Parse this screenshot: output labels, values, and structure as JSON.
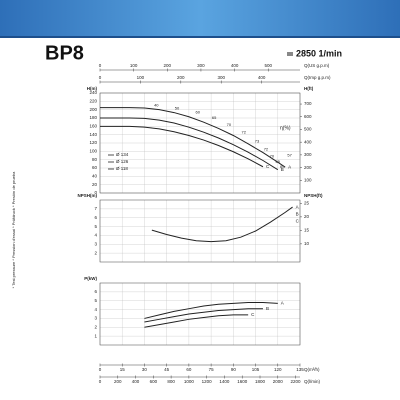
{
  "header": {
    "model": "BP8",
    "speed": "2850 1/min"
  },
  "side_note": "* Test pressure * Pression d'essai * Prüfdruck * Presión de prueba",
  "flow_axes": [
    {
      "label": "Q(US g.p.m)",
      "position": "top",
      "lim": [
        0,
        594.4
      ],
      "ticks": [
        0,
        100,
        200,
        300,
        400,
        500
      ]
    },
    {
      "label": "Q(Imp g.p.m)",
      "position": "top",
      "lim": [
        0,
        495
      ],
      "ticks": [
        0,
        100,
        200,
        300,
        400
      ]
    },
    {
      "label": "Q(m³/h)",
      "position": "bottom",
      "lim": [
        0,
        135
      ],
      "ticks": [
        0,
        15,
        30,
        45,
        60,
        75,
        90,
        105,
        120,
        135
      ]
    },
    {
      "label": "Q(l/min)",
      "position": "bottom",
      "lim": [
        0,
        2250
      ],
      "ticks": [
        0,
        200,
        400,
        600,
        800,
        1000,
        1200,
        1400,
        1600,
        1800,
        2000,
        2200
      ]
    }
  ],
  "chart_data": [
    {
      "type": "line",
      "y_label": "H(m)",
      "xlim": [
        0,
        135
      ],
      "ylim": [
        0,
        240
      ],
      "yticks": [
        0,
        20,
        40,
        60,
        80,
        100,
        120,
        140,
        160,
        180,
        200,
        220,
        240
      ],
      "y2_label": "H(ft)",
      "y2lim": [
        0,
        787
      ],
      "y2ticks": [
        100,
        200,
        300,
        400,
        500,
        600,
        700
      ],
      "x": [
        0,
        10,
        20,
        30,
        40,
        50,
        60,
        70,
        80,
        90,
        100,
        110,
        120,
        125
      ],
      "series": [
        {
          "name": "A",
          "diameter": "Ø 134",
          "color": "#222222",
          "values": [
            205,
            205,
            205,
            204,
            200,
            193,
            183,
            170,
            155,
            138,
            118,
            97,
            74,
            62
          ]
        },
        {
          "name": "B",
          "diameter": "Ø 126",
          "color": "#222222",
          "values": [
            180,
            180,
            180,
            179,
            175,
            168,
            158,
            146,
            132,
            116,
            98,
            78,
            56,
            null
          ]
        },
        {
          "name": "C",
          "diameter": "Ø 118",
          "color": "#222222",
          "values": [
            160,
            160,
            160,
            158,
            154,
            147,
            138,
            127,
            114,
            99,
            82,
            63,
            null,
            null
          ]
        }
      ],
      "efficiency": {
        "label": "η(%)",
        "points": [
          {
            "value": 40,
            "x": 38,
            "y": 210
          },
          {
            "value": 50,
            "x": 52,
            "y": 203
          },
          {
            "value": 60,
            "x": 66,
            "y": 193
          },
          {
            "value": 65,
            "x": 77,
            "y": 180
          },
          {
            "value": 70,
            "x": 87,
            "y": 163
          },
          {
            "value": 72,
            "x": 97,
            "y": 145
          },
          {
            "value": 73,
            "x": 106,
            "y": 124
          },
          {
            "value": 72,
            "x": 112,
            "y": 104
          },
          {
            "value": 70,
            "x": 116,
            "y": 88
          },
          {
            "value": 65,
            "x": 120,
            "y": 74
          },
          {
            "value": 60,
            "x": 123,
            "y": 62
          },
          {
            "value": 57,
            "x": 128,
            "y": 90
          }
        ]
      }
    },
    {
      "type": "line",
      "y_label": "NPSH(m)",
      "xlim": [
        0,
        135
      ],
      "ylim": [
        1,
        8
      ],
      "yticks": [
        2,
        3,
        4,
        5,
        6,
        7
      ],
      "y2_label": "NPSH(ft)",
      "y2lim": [
        3.28,
        26.25
      ],
      "y2ticks": [
        10,
        15,
        20,
        25
      ],
      "x": [
        35,
        45,
        55,
        65,
        75,
        85,
        95,
        105,
        115,
        125,
        130
      ],
      "series": [
        {
          "name": "A",
          "color": "#222222",
          "values": [
            4.6,
            4.1,
            3.7,
            3.4,
            3.3,
            3.4,
            3.8,
            4.5,
            5.5,
            6.6,
            7.2
          ]
        }
      ],
      "annotations": [
        "B",
        "C"
      ]
    },
    {
      "type": "line",
      "y_label": "P(kW)",
      "xlim": [
        0,
        135
      ],
      "ylim": [
        0,
        7
      ],
      "yticks": [
        1,
        2,
        3,
        4,
        5,
        6
      ],
      "x": [
        30,
        40,
        50,
        60,
        70,
        80,
        90,
        100,
        110,
        120
      ],
      "series": [
        {
          "name": "A",
          "color": "#222222",
          "values": [
            3.0,
            3.4,
            3.8,
            4.1,
            4.4,
            4.6,
            4.7,
            4.8,
            4.8,
            4.7
          ]
        },
        {
          "name": "B",
          "color": "#222222",
          "values": [
            2.6,
            2.9,
            3.2,
            3.5,
            3.7,
            3.9,
            4.0,
            4.1,
            4.1,
            null
          ]
        },
        {
          "name": "C",
          "color": "#222222",
          "values": [
            2.0,
            2.3,
            2.6,
            2.9,
            3.1,
            3.3,
            3.4,
            3.4,
            null,
            null
          ]
        }
      ]
    }
  ]
}
